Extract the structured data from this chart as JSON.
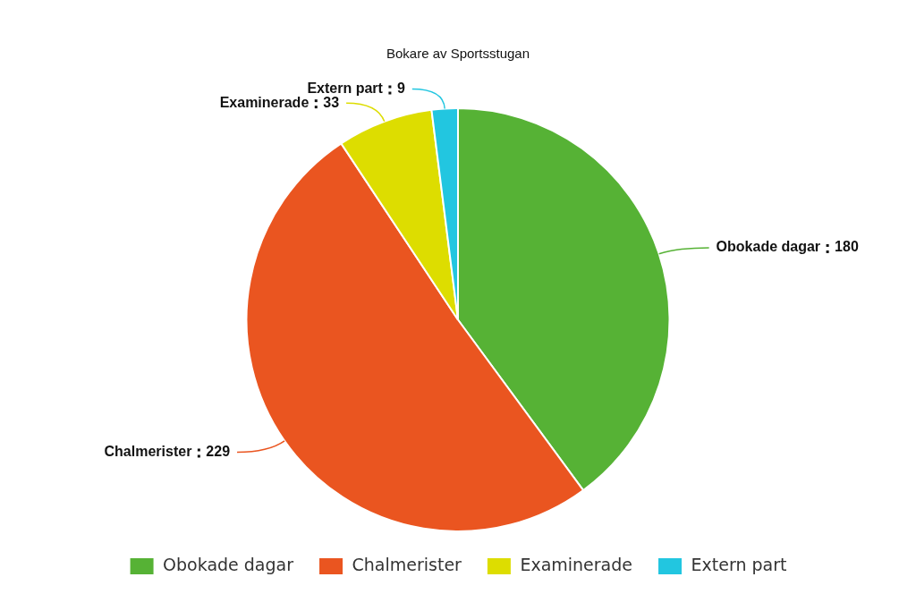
{
  "chart_data": {
    "type": "pie",
    "title": "Bokare av Sportsstugan",
    "categories": [
      "Obokade dagar",
      "Chalmerister",
      "Examinerade",
      "Extern part"
    ],
    "values": [
      180,
      229,
      33,
      9
    ],
    "colors": [
      "#56b235",
      "#ea5520",
      "#dddd00",
      "#22c6e0"
    ],
    "data_labels": true,
    "legend": "bottom"
  }
}
